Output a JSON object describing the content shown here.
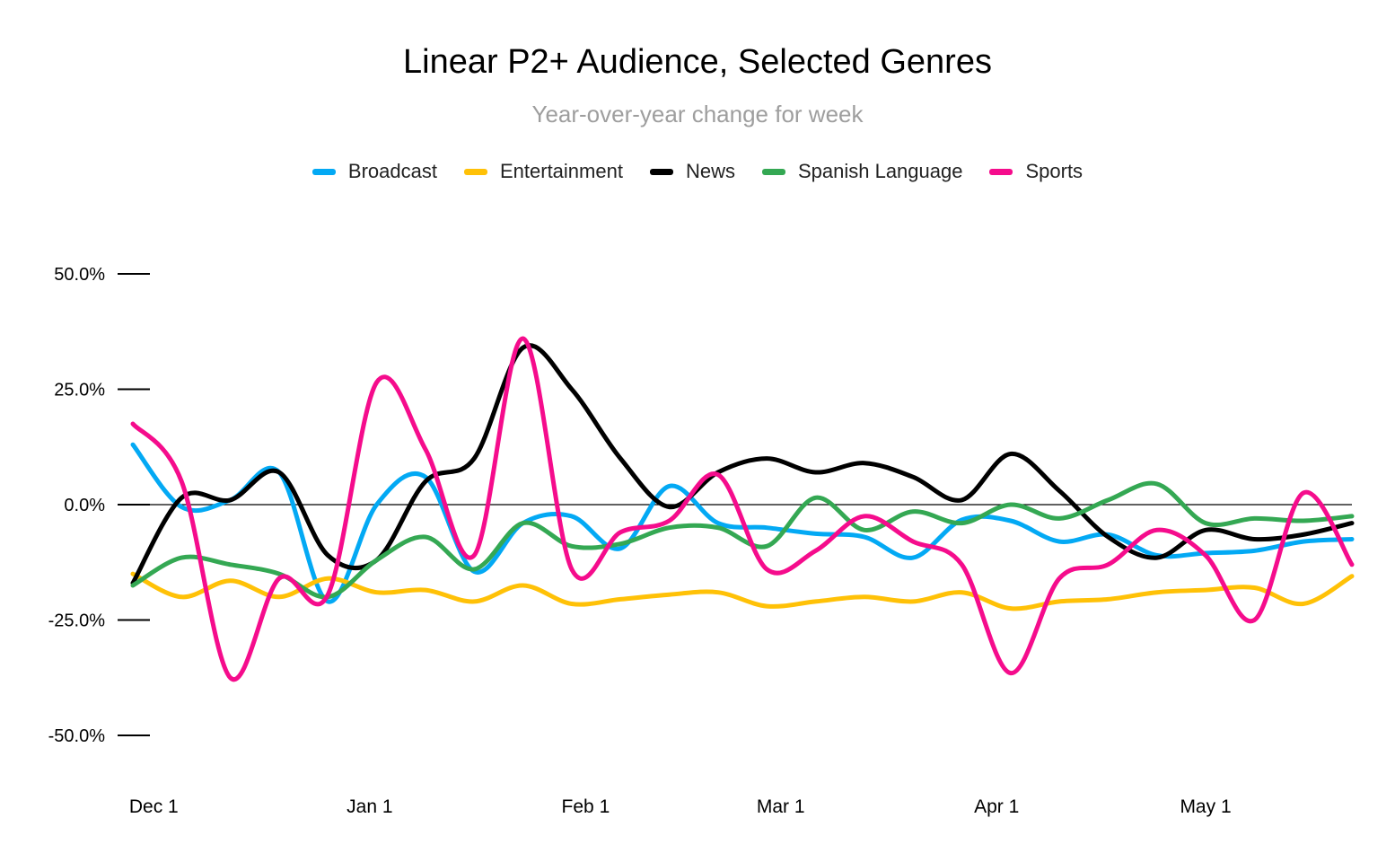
{
  "chart_data": {
    "type": "line",
    "title": "Linear P2+ Audience, Selected Genres",
    "subtitle": "Year-over-year change for week",
    "legend_position": "top",
    "ylim": [
      -50,
      50
    ],
    "yticks": [
      50,
      25,
      0,
      -25,
      -50
    ],
    "ytick_labels": [
      "50.0%",
      "25.0%",
      "0.0%",
      "-25.0%",
      "-50.0%"
    ],
    "xtick_labels": [
      "Dec 1",
      "Jan 1",
      "Feb 1",
      "Mar 1",
      "Apr 1",
      "May 1"
    ],
    "xtick_positions": [
      3,
      34,
      65,
      93,
      124,
      154
    ],
    "x": [
      0,
      7,
      14,
      21,
      28,
      35,
      42,
      49,
      56,
      63,
      70,
      77,
      84,
      91,
      98,
      105,
      112,
      119,
      126,
      133,
      140,
      147,
      154,
      161,
      168,
      175
    ],
    "grid": false,
    "zero_line": true,
    "series": [
      {
        "name": "Broadcast",
        "color": "#03a9f4",
        "values": [
          13,
          -0.5,
          1,
          7,
          -21,
          0,
          6,
          -14.5,
          -4,
          -2.5,
          -9.5,
          4,
          -4,
          -5,
          -6.3,
          -7,
          -11.5,
          -3.3,
          -3.5,
          -8,
          -6.5,
          -11,
          -10.5,
          -10,
          -8,
          -7.5
        ]
      },
      {
        "name": "Entertainment",
        "color": "#ffc107",
        "values": [
          -15,
          -20,
          -16.5,
          -20,
          -16,
          -19,
          -18.5,
          -21,
          -17.5,
          -21.5,
          -20.5,
          -19.5,
          -19,
          -22,
          -21,
          -20,
          -21,
          -19,
          -22.5,
          -21,
          -20.5,
          -19,
          -18.5,
          -18,
          -21.5,
          -15.5
        ]
      },
      {
        "name": "News",
        "color": "#000000",
        "values": [
          -17,
          1.5,
          1,
          7,
          -11,
          -12,
          5,
          10,
          34,
          25,
          10,
          -0.5,
          7,
          10,
          7,
          9,
          6,
          1,
          11,
          3,
          -7,
          -11.5,
          -5.5,
          -7.5,
          -6.5,
          -4
        ]
      },
      {
        "name": "Spanish Language",
        "color": "#34a853",
        "values": [
          -17.5,
          -11.5,
          -13,
          -15,
          -20,
          -12,
          -7,
          -14,
          -4,
          -9,
          -8.5,
          -5,
          -5,
          -9,
          1.5,
          -5.5,
          -1.5,
          -4,
          0,
          -3,
          1,
          4.5,
          -4,
          -3,
          -3.5,
          -2.5
        ]
      },
      {
        "name": "Sports",
        "color": "#f50c8c",
        "values": [
          17.5,
          5,
          -37.5,
          -16,
          -19.5,
          26.5,
          12,
          -11,
          36,
          -14,
          -6,
          -3.5,
          6.5,
          -14,
          -10,
          -2.5,
          -8,
          -13,
          -36.5,
          -16,
          -13,
          -5.5,
          -11,
          -25,
          2.5,
          -13
        ]
      }
    ]
  }
}
